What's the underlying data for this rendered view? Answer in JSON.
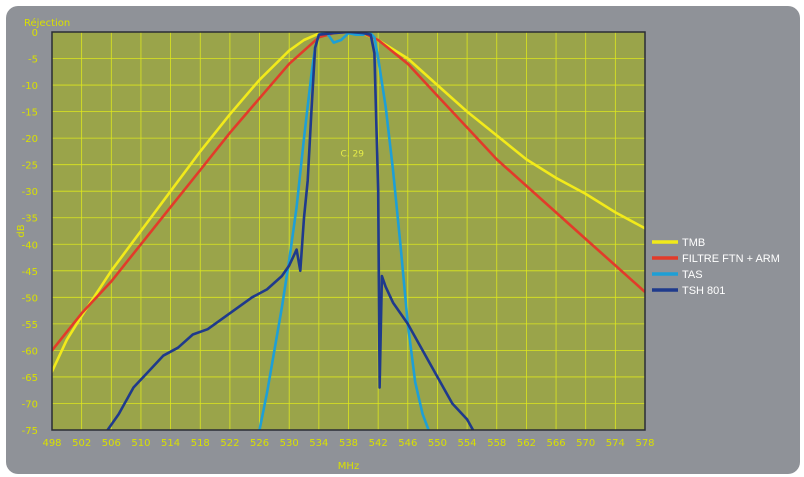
{
  "chart_data": {
    "type": "line",
    "title": "Réjection",
    "xlabel": "MHz",
    "ylabel": "dB",
    "xlim": [
      498,
      578
    ],
    "ylim": [
      -75,
      0
    ],
    "xticks": [
      498,
      502,
      506,
      510,
      514,
      518,
      522,
      526,
      530,
      534,
      538,
      542,
      546,
      550,
      554,
      558,
      562,
      566,
      570,
      574,
      578
    ],
    "yticks": [
      0,
      -5,
      -10,
      -15,
      -20,
      -25,
      -30,
      -35,
      -40,
      -45,
      -50,
      -55,
      -60,
      -65,
      -70,
      -75
    ],
    "grid": true,
    "legend_position": "right",
    "annotations": [
      {
        "text": "C. 29",
        "x": 538.5,
        "y": -23.5
      }
    ],
    "series": [
      {
        "name": "TMB",
        "color": "#f2ea1a",
        "x": [
          498,
          500,
          502,
          506,
          510,
          514,
          518,
          522,
          526,
          530,
          532,
          534,
          536,
          538,
          540,
          542,
          546,
          550,
          554,
          558,
          562,
          566,
          570,
          574,
          578
        ],
        "y": [
          -64,
          -58,
          -53.5,
          -45,
          -37.5,
          -30,
          -22.5,
          -15.5,
          -9,
          -3.5,
          -1.5,
          -0.3,
          0,
          0,
          -0.3,
          -1.5,
          -5,
          -10,
          -15,
          -19.5,
          -24,
          -27.5,
          -30.5,
          -34,
          -37
        ]
      },
      {
        "name": "FILTRE FTN + ARM",
        "color": "#e23b2a",
        "x": [
          498,
          502,
          506,
          510,
          514,
          518,
          522,
          526,
          530,
          534,
          536,
          538,
          540,
          542,
          546,
          550,
          554,
          558,
          562,
          566,
          570,
          574,
          578
        ],
        "y": [
          -60,
          -53,
          -47,
          -40,
          -33,
          -26,
          -19,
          -12.5,
          -6,
          -1,
          -0.2,
          0,
          -0.2,
          -1.5,
          -6,
          -12,
          -18,
          -24,
          -29,
          -34,
          -39,
          -44,
          -49
        ]
      },
      {
        "name": "TAS",
        "color": "#1e9fd6",
        "x": [
          526,
          527,
          528,
          529,
          530,
          531,
          532,
          533,
          533.5,
          534,
          535,
          536,
          537,
          538,
          539,
          540,
          540.5,
          541,
          541.5,
          542,
          543,
          544,
          545,
          546,
          547,
          548,
          548.8
        ],
        "y": [
          -75,
          -68,
          -60,
          -52,
          -43,
          -33,
          -20,
          -8,
          -3,
          -0.5,
          0,
          -2,
          -1.5,
          -0.2,
          -0.5,
          -0.5,
          0,
          -0.3,
          -1,
          -5,
          -14,
          -26,
          -40,
          -55,
          -66,
          -72,
          -75
        ]
      },
      {
        "name": "TSH 801",
        "color": "#1f3a8c",
        "x": [
          505.5,
          507,
          509,
          511,
          513,
          515,
          517,
          519,
          521,
          523,
          525,
          527,
          529,
          530,
          531,
          531.5,
          532,
          532.5,
          533,
          533.5,
          534,
          536,
          538,
          540,
          541,
          541.5,
          542,
          542.2,
          542.5,
          543,
          544,
          546,
          548,
          550,
          552,
          554,
          554.8
        ],
        "y": [
          -75,
          -72,
          -67,
          -64,
          -61,
          -59.5,
          -57,
          -56,
          -54,
          -52,
          -50,
          -48.5,
          -46,
          -44,
          -41,
          -45,
          -35,
          -28,
          -15,
          -3,
          -0.5,
          -0.2,
          0,
          -0.2,
          -0.5,
          -4,
          -30,
          -67,
          -46,
          -48,
          -51,
          -55,
          -60,
          -65,
          -70,
          -73,
          -75
        ]
      }
    ]
  }
}
